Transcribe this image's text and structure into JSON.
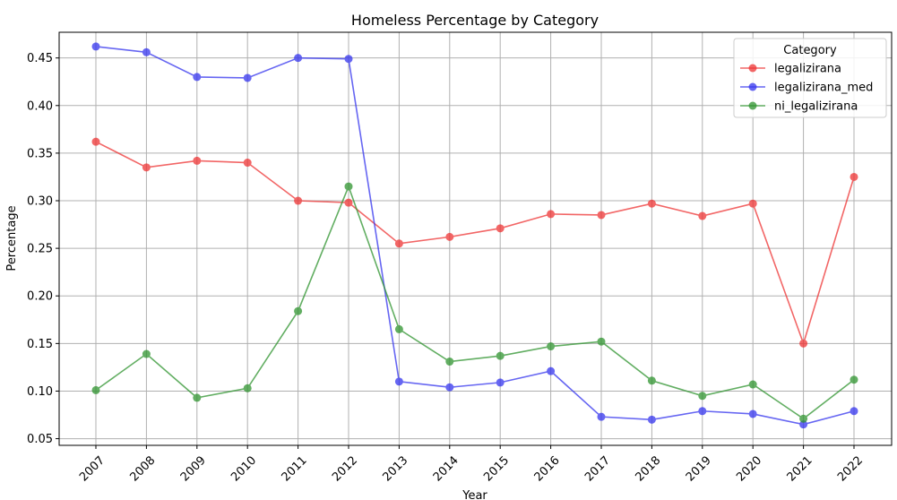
{
  "chart_data": {
    "type": "line",
    "title": "Homeless Percentage by Category",
    "xlabel": "Year",
    "ylabel": "Percentage",
    "categories": [
      "2007",
      "2008",
      "2009",
      "2010",
      "2011",
      "2012",
      "2013",
      "2014",
      "2015",
      "2016",
      "2017",
      "2018",
      "2019",
      "2020",
      "2021",
      "2022"
    ],
    "ylim": [
      0.043,
      0.477
    ],
    "yticks": [
      "0.05",
      "0.10",
      "0.15",
      "0.20",
      "0.25",
      "0.30",
      "0.35",
      "0.40",
      "0.45"
    ],
    "grid": true,
    "legend": {
      "title": "Category",
      "placement": "top-right"
    },
    "series": [
      {
        "name": "legalizirana",
        "color": "#ee3333",
        "values": [
          0.362,
          0.335,
          0.342,
          0.34,
          0.3,
          0.298,
          0.255,
          0.262,
          0.271,
          0.286,
          0.285,
          0.297,
          0.284,
          0.297,
          0.15,
          0.325
        ]
      },
      {
        "name": "legalizirana_med",
        "color": "#3333ee",
        "values": [
          0.462,
          0.456,
          0.43,
          0.429,
          0.45,
          0.449,
          0.11,
          0.104,
          0.109,
          0.121,
          0.073,
          0.07,
          0.079,
          0.076,
          0.065,
          0.079
        ]
      },
      {
        "name": "ni_legalizirana",
        "color": "#2e932e",
        "values": [
          0.101,
          0.139,
          0.093,
          0.103,
          0.184,
          0.315,
          0.165,
          0.131,
          0.137,
          0.147,
          0.152,
          0.111,
          0.095,
          0.107,
          0.071,
          0.112
        ]
      }
    ]
  }
}
